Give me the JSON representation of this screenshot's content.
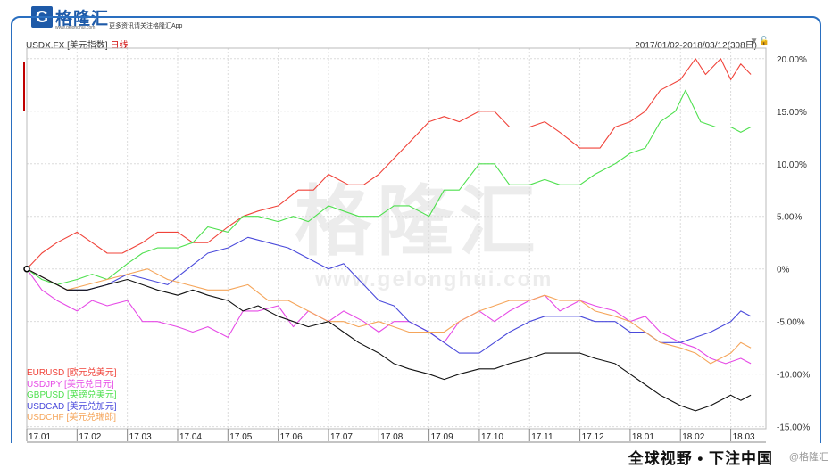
{
  "brand": {
    "logo_letter": "G",
    "name": "格隆汇",
    "url": "www.gelonghui.com",
    "slogan": "更多资讯请关注格隆汇App"
  },
  "chart_header": {
    "symbol": "USDX.FX",
    "name": "[美元指数]",
    "period": "日线",
    "range": "2017/01/02-2018/03/12(308日)"
  },
  "watermark": {
    "text": "格隆汇",
    "url": "www.gelonghui.com"
  },
  "footer": {
    "tagline": "全球视野 • 下注中国",
    "credit": "@格隆汇"
  },
  "chart_data": {
    "type": "line",
    "x_tick_labels": [
      "17.01",
      "17.02",
      "17.03",
      "17.04",
      "17.05",
      "17.06",
      "17.07",
      "17.08",
      "17.09",
      "17.10",
      "17.11",
      "17.12",
      "18.01",
      "18.02",
      "18.03"
    ],
    "y_tick_labels": [
      "20.00%",
      "15.00%",
      "10.00%",
      "5.00%",
      "0%",
      "-5.00%",
      "-10.00%",
      "-15.00%"
    ],
    "y_ticks": [
      20,
      15,
      10,
      5,
      0,
      -5,
      -10,
      -15
    ],
    "ylim": [
      -15.2,
      21
    ],
    "x_range": [
      0,
      14.7
    ],
    "grid": true,
    "legend_position": "bottom-left",
    "series": [
      {
        "name": "EURUSD [欧元兑美元]",
        "color": "#f0433a",
        "points": [
          [
            0,
            0
          ],
          [
            0.3,
            1.5
          ],
          [
            0.6,
            2.5
          ],
          [
            1,
            3.5
          ],
          [
            1.3,
            2.5
          ],
          [
            1.6,
            1.5
          ],
          [
            1.9,
            1.5
          ],
          [
            2.3,
            2.5
          ],
          [
            2.6,
            3.5
          ],
          [
            3,
            3.5
          ],
          [
            3.3,
            2.5
          ],
          [
            3.6,
            2.5
          ],
          [
            4,
            4
          ],
          [
            4.3,
            5
          ],
          [
            4.6,
            5.5
          ],
          [
            5,
            6
          ],
          [
            5.4,
            7.5
          ],
          [
            5.7,
            7.5
          ],
          [
            6,
            9
          ],
          [
            6.4,
            8
          ],
          [
            6.7,
            8
          ],
          [
            7,
            9
          ],
          [
            7.3,
            10.5
          ],
          [
            7.6,
            12
          ],
          [
            8,
            14
          ],
          [
            8.3,
            14.5
          ],
          [
            8.6,
            14
          ],
          [
            9,
            15
          ],
          [
            9.3,
            15
          ],
          [
            9.6,
            13.5
          ],
          [
            10,
            13.5
          ],
          [
            10.3,
            14
          ],
          [
            10.6,
            13
          ],
          [
            11,
            11.5
          ],
          [
            11.4,
            11.5
          ],
          [
            11.7,
            13.5
          ],
          [
            12,
            14
          ],
          [
            12.3,
            15
          ],
          [
            12.6,
            17
          ],
          [
            13,
            18
          ],
          [
            13.3,
            20
          ],
          [
            13.5,
            18.5
          ],
          [
            13.8,
            20
          ],
          [
            14,
            18
          ],
          [
            14.2,
            19.5
          ],
          [
            14.4,
            18.5
          ]
        ]
      },
      {
        "name": "USDJPY [美元兑日元]",
        "color": "#e64ae6",
        "points": [
          [
            0,
            0
          ],
          [
            0.3,
            -2
          ],
          [
            0.6,
            -3
          ],
          [
            1,
            -4
          ],
          [
            1.3,
            -3
          ],
          [
            1.6,
            -3.5
          ],
          [
            2,
            -3
          ],
          [
            2.3,
            -5
          ],
          [
            2.6,
            -5
          ],
          [
            3,
            -5.5
          ],
          [
            3.3,
            -6
          ],
          [
            3.6,
            -5.5
          ],
          [
            4,
            -6.5
          ],
          [
            4.3,
            -4
          ],
          [
            4.6,
            -4
          ],
          [
            5,
            -3.5
          ],
          [
            5.3,
            -5.5
          ],
          [
            5.6,
            -4
          ],
          [
            6,
            -5
          ],
          [
            6.3,
            -4
          ],
          [
            6.7,
            -5
          ],
          [
            7,
            -6
          ],
          [
            7.3,
            -5
          ],
          [
            7.6,
            -5
          ],
          [
            8,
            -6
          ],
          [
            8.3,
            -7
          ],
          [
            8.6,
            -5
          ],
          [
            9,
            -4
          ],
          [
            9.3,
            -5
          ],
          [
            9.6,
            -4
          ],
          [
            10,
            -3
          ],
          [
            10.3,
            -2.5
          ],
          [
            10.6,
            -4
          ],
          [
            11,
            -3
          ],
          [
            11.3,
            -3.5
          ],
          [
            11.7,
            -4
          ],
          [
            12,
            -5
          ],
          [
            12.3,
            -4.5
          ],
          [
            12.6,
            -6
          ],
          [
            13,
            -7
          ],
          [
            13.3,
            -7.5
          ],
          [
            13.6,
            -8.5
          ],
          [
            13.9,
            -9
          ],
          [
            14.2,
            -8.5
          ],
          [
            14.4,
            -9
          ]
        ]
      },
      {
        "name": "GBPUSD [英镑兑美元]",
        "color": "#4ee04e",
        "points": [
          [
            0,
            0
          ],
          [
            0.3,
            -1
          ],
          [
            0.6,
            -1.5
          ],
          [
            1,
            -1
          ],
          [
            1.3,
            -0.5
          ],
          [
            1.6,
            -1
          ],
          [
            2,
            0.5
          ],
          [
            2.3,
            1.5
          ],
          [
            2.6,
            2
          ],
          [
            3,
            2
          ],
          [
            3.3,
            2.5
          ],
          [
            3.6,
            4
          ],
          [
            4,
            3.5
          ],
          [
            4.3,
            5
          ],
          [
            4.6,
            5
          ],
          [
            5,
            4.5
          ],
          [
            5.3,
            5
          ],
          [
            5.6,
            4.5
          ],
          [
            6,
            6
          ],
          [
            6.3,
            5.5
          ],
          [
            6.6,
            5
          ],
          [
            7,
            5
          ],
          [
            7.3,
            6
          ],
          [
            7.6,
            6
          ],
          [
            8,
            5
          ],
          [
            8.3,
            7.5
          ],
          [
            8.6,
            7.5
          ],
          [
            9,
            10
          ],
          [
            9.3,
            10
          ],
          [
            9.6,
            8
          ],
          [
            10,
            8
          ],
          [
            10.3,
            8.5
          ],
          [
            10.6,
            8
          ],
          [
            11,
            8
          ],
          [
            11.3,
            9
          ],
          [
            11.7,
            10
          ],
          [
            12,
            11
          ],
          [
            12.3,
            11.5
          ],
          [
            12.6,
            14
          ],
          [
            12.9,
            15
          ],
          [
            13.1,
            17
          ],
          [
            13.4,
            14
          ],
          [
            13.7,
            13.5
          ],
          [
            14,
            13.5
          ],
          [
            14.2,
            13
          ],
          [
            14.4,
            13.5
          ]
        ]
      },
      {
        "name": "USDCAD [美元兑加元]",
        "color": "#4a4adb",
        "points": [
          [
            0,
            0
          ],
          [
            0.4,
            -1
          ],
          [
            0.8,
            -2
          ],
          [
            1.2,
            -2
          ],
          [
            1.6,
            -1.5
          ],
          [
            2,
            -0.5
          ],
          [
            2.4,
            -1
          ],
          [
            2.8,
            -1.5
          ],
          [
            3.2,
            0
          ],
          [
            3.6,
            1.5
          ],
          [
            4,
            2
          ],
          [
            4.4,
            3
          ],
          [
            4.8,
            2.5
          ],
          [
            5.2,
            2
          ],
          [
            5.6,
            1
          ],
          [
            6,
            0
          ],
          [
            6.3,
            0.5
          ],
          [
            6.6,
            -1
          ],
          [
            7,
            -3
          ],
          [
            7.3,
            -3.5
          ],
          [
            7.6,
            -5
          ],
          [
            8,
            -6
          ],
          [
            8.3,
            -7
          ],
          [
            8.6,
            -8
          ],
          [
            9,
            -8
          ],
          [
            9.3,
            -7
          ],
          [
            9.6,
            -6
          ],
          [
            10,
            -5
          ],
          [
            10.3,
            -4.5
          ],
          [
            10.6,
            -4.5
          ],
          [
            11,
            -4.5
          ],
          [
            11.3,
            -5
          ],
          [
            11.7,
            -5
          ],
          [
            12,
            -6
          ],
          [
            12.3,
            -6
          ],
          [
            12.6,
            -7
          ],
          [
            13,
            -7
          ],
          [
            13.3,
            -6.5
          ],
          [
            13.6,
            -6
          ],
          [
            14,
            -5
          ],
          [
            14.2,
            -4
          ],
          [
            14.4,
            -4.5
          ]
        ]
      },
      {
        "name": "USDCHF [美元兑瑞郎]",
        "color": "#f5a55a",
        "points": [
          [
            0,
            0
          ],
          [
            0.4,
            -1
          ],
          [
            0.8,
            -2
          ],
          [
            1.2,
            -1.5
          ],
          [
            1.6,
            -1
          ],
          [
            2,
            -0.5
          ],
          [
            2.4,
            0
          ],
          [
            2.8,
            -1
          ],
          [
            3.2,
            -1.5
          ],
          [
            3.6,
            -2
          ],
          [
            4,
            -2
          ],
          [
            4.4,
            -1.5
          ],
          [
            4.8,
            -3
          ],
          [
            5.2,
            -3
          ],
          [
            5.6,
            -4
          ],
          [
            6,
            -5
          ],
          [
            6.3,
            -5
          ],
          [
            6.6,
            -5.5
          ],
          [
            7,
            -5
          ],
          [
            7.3,
            -5.5
          ],
          [
            7.6,
            -6
          ],
          [
            8,
            -6
          ],
          [
            8.3,
            -6
          ],
          [
            8.6,
            -5
          ],
          [
            9,
            -4
          ],
          [
            9.3,
            -3.5
          ],
          [
            9.6,
            -3
          ],
          [
            10,
            -3
          ],
          [
            10.3,
            -2.5
          ],
          [
            10.6,
            -3
          ],
          [
            11,
            -3
          ],
          [
            11.3,
            -4
          ],
          [
            11.7,
            -4.5
          ],
          [
            12,
            -5
          ],
          [
            12.3,
            -6
          ],
          [
            12.6,
            -7
          ],
          [
            13,
            -7.5
          ],
          [
            13.3,
            -8
          ],
          [
            13.6,
            -9
          ],
          [
            14,
            -8
          ],
          [
            14.2,
            -7
          ],
          [
            14.4,
            -7.5
          ]
        ]
      },
      {
        "color": "#111111",
        "points": [
          [
            0,
            0
          ],
          [
            0.4,
            -1
          ],
          [
            0.8,
            -2
          ],
          [
            1.2,
            -2
          ],
          [
            1.6,
            -1.5
          ],
          [
            2,
            -1
          ],
          [
            2.3,
            -1.5
          ],
          [
            2.6,
            -2
          ],
          [
            3,
            -2.5
          ],
          [
            3.3,
            -2
          ],
          [
            3.6,
            -2.5
          ],
          [
            4,
            -3
          ],
          [
            4.3,
            -4
          ],
          [
            4.6,
            -3.5
          ],
          [
            5,
            -4.5
          ],
          [
            5.3,
            -5
          ],
          [
            5.6,
            -5.5
          ],
          [
            6,
            -5
          ],
          [
            6.3,
            -6
          ],
          [
            6.6,
            -7
          ],
          [
            7,
            -8
          ],
          [
            7.3,
            -9
          ],
          [
            7.6,
            -9.5
          ],
          [
            8,
            -10
          ],
          [
            8.3,
            -10.5
          ],
          [
            8.6,
            -10
          ],
          [
            9,
            -9.5
          ],
          [
            9.3,
            -9.5
          ],
          [
            9.6,
            -9
          ],
          [
            10,
            -8.5
          ],
          [
            10.3,
            -8
          ],
          [
            10.6,
            -8
          ],
          [
            11,
            -8
          ],
          [
            11.3,
            -8.5
          ],
          [
            11.7,
            -9
          ],
          [
            12,
            -10
          ],
          [
            12.3,
            -11
          ],
          [
            12.6,
            -12
          ],
          [
            13,
            -13
          ],
          [
            13.3,
            -13.5
          ],
          [
            13.6,
            -13
          ],
          [
            14,
            -12
          ],
          [
            14.2,
            -12.5
          ],
          [
            14.4,
            -12
          ]
        ]
      }
    ]
  }
}
